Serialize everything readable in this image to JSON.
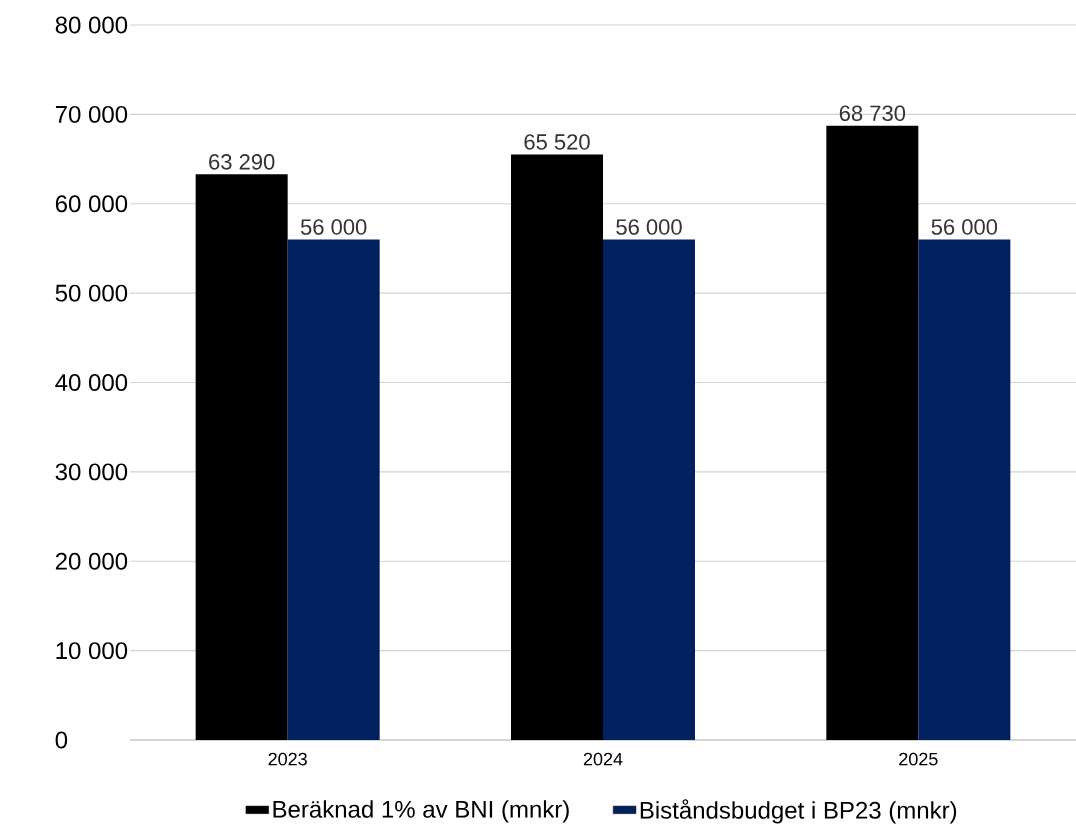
{
  "chart_data": {
    "type": "bar",
    "categories": [
      "2023",
      "2024",
      "2025"
    ],
    "series": [
      {
        "name": "Beräknad 1% av BNI (mnkr)",
        "color": "#000000",
        "values": [
          63290,
          65520,
          68730
        ],
        "value_labels": [
          "63 290",
          "65 520",
          "68 730"
        ]
      },
      {
        "name": "Biståndsbudget i BP23 (mnkr)",
        "color": "#002060",
        "values": [
          56000,
          56000,
          56000
        ],
        "value_labels": [
          "56 000",
          "56 000",
          "56 000"
        ]
      }
    ],
    "ylim": [
      0,
      80000
    ],
    "yticks": [
      {
        "value": 0,
        "label": "0"
      },
      {
        "value": 10000,
        "label": "10 000"
      },
      {
        "value": 20000,
        "label": "20 000"
      },
      {
        "value": 30000,
        "label": "30 000"
      },
      {
        "value": 40000,
        "label": "40 000"
      },
      {
        "value": 50000,
        "label": "50 000"
      },
      {
        "value": 60000,
        "label": "60 000"
      },
      {
        "value": 70000,
        "label": "70 000"
      },
      {
        "value": 80000,
        "label": "80 000"
      }
    ],
    "grid": "y",
    "legend": "bottom"
  }
}
